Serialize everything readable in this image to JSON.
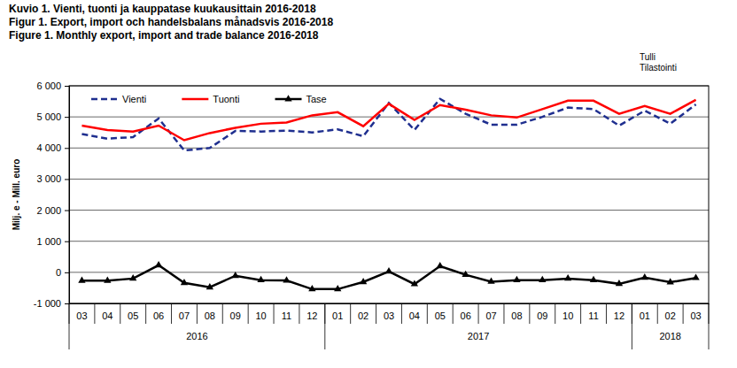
{
  "chart_data": {
    "type": "line",
    "title": [
      "Kuvio 1. Vienti, tuonti ja kauppatase kuukausittain 2016-2018",
      "Figur 1. Export, import och handelsbalans månadsvis 2016-2018",
      "Figure 1. Monthly export, import and trade balance 2016-2018"
    ],
    "source": [
      "Tulli",
      "Tilastointi"
    ],
    "y_label": "Milj. e - Mill. euro",
    "categories": [
      "03",
      "04",
      "05",
      "06",
      "07",
      "08",
      "09",
      "10",
      "11",
      "12",
      "01",
      "02",
      "03",
      "04",
      "05",
      "06",
      "07",
      "08",
      "09",
      "10",
      "11",
      "12",
      "01",
      "02",
      "03"
    ],
    "year_groups": [
      {
        "label": "2016",
        "size": 10
      },
      {
        "label": "2017",
        "size": 12
      },
      {
        "label": "2018",
        "size": 3
      }
    ],
    "series": [
      {
        "name": "Vienti",
        "color": "#1f2f8f",
        "line_style": "dashed",
        "values": [
          4450,
          4300,
          4350,
          4950,
          3920,
          4000,
          4550,
          4530,
          4560,
          4500,
          4600,
          4380,
          5450,
          4580,
          5580,
          5100,
          4750,
          4750,
          5000,
          5300,
          5250,
          4720,
          5200,
          4780,
          5400
        ]
      },
      {
        "name": "Tuonti",
        "color": "#ff0000",
        "line_style": "solid",
        "values": [
          4720,
          4580,
          4530,
          4720,
          4250,
          4480,
          4650,
          4780,
          4820,
          5050,
          5150,
          4700,
          5420,
          4900,
          5380,
          5230,
          5050,
          4980,
          5250,
          5520,
          5520,
          5100,
          5350,
          5100,
          5550
        ]
      },
      {
        "name": "Tase",
        "color": "#000000",
        "line_style": "solid",
        "marker": "triangle",
        "values": [
          -270,
          -270,
          -200,
          230,
          -340,
          -480,
          -110,
          -250,
          -260,
          -540,
          -540,
          -310,
          30,
          -380,
          200,
          -80,
          -300,
          -250,
          -250,
          -200,
          -250,
          -370,
          -170,
          -320,
          -180
        ]
      }
    ],
    "ylim": [
      -1000,
      6000
    ],
    "yticks": [
      {
        "value": -1000,
        "label": "-1 000"
      },
      0,
      {
        "value": 1000,
        "label": "1 000"
      },
      {
        "value": 2000,
        "label": "2 000"
      },
      {
        "value": 3000,
        "label": "3 000"
      },
      {
        "value": 4000,
        "label": "4 000"
      },
      {
        "value": 5000,
        "label": "5 000"
      },
      {
        "value": 6000,
        "label": "6 000"
      }
    ],
    "grid": true,
    "legend": "top-left"
  }
}
